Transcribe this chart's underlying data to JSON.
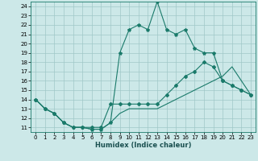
{
  "xlabel": "Humidex (Indice chaleur)",
  "bg_color": "#cce8e8",
  "grid_color": "#a0c8c8",
  "line_color": "#1a7a6a",
  "xlim": [
    -0.5,
    23.5
  ],
  "ylim": [
    10.5,
    24.5
  ],
  "yticks": [
    11,
    12,
    13,
    14,
    15,
    16,
    17,
    18,
    19,
    20,
    21,
    22,
    23,
    24
  ],
  "xticks": [
    0,
    1,
    2,
    3,
    4,
    5,
    6,
    7,
    8,
    9,
    10,
    11,
    12,
    13,
    14,
    15,
    16,
    17,
    18,
    19,
    20,
    21,
    22,
    23
  ],
  "line1_x": [
    0,
    1,
    2,
    3,
    4,
    5,
    6,
    7,
    8,
    9,
    10,
    11,
    12,
    13,
    14,
    15,
    16,
    17,
    18,
    19,
    20,
    21,
    22,
    23
  ],
  "line1_y": [
    14,
    13,
    12.5,
    11.5,
    11,
    11,
    10.8,
    10.8,
    11.5,
    19.0,
    21.5,
    22,
    21.5,
    24.5,
    21.5,
    21,
    21.5,
    19.5,
    19.0,
    19.0,
    16.0,
    15.5,
    15.0,
    14.5
  ],
  "line2_x": [
    0,
    1,
    2,
    3,
    4,
    5,
    6,
    7,
    8,
    9,
    10,
    11,
    12,
    13,
    14,
    15,
    16,
    17,
    18,
    19,
    20,
    21,
    22,
    23
  ],
  "line2_y": [
    14,
    13,
    12.5,
    11.5,
    11,
    11,
    11,
    11,
    13.5,
    13.5,
    13.5,
    13.5,
    13.5,
    13.5,
    14.5,
    15.5,
    16.5,
    17.0,
    18.0,
    17.5,
    16.0,
    15.5,
    15.0,
    14.5
  ],
  "line3_x": [
    0,
    1,
    2,
    3,
    4,
    5,
    6,
    7,
    8,
    9,
    10,
    11,
    12,
    13,
    14,
    15,
    16,
    17,
    18,
    19,
    20,
    21,
    22,
    23
  ],
  "line3_y": [
    14,
    13,
    12.5,
    11.5,
    11,
    11,
    10.8,
    10.8,
    11.5,
    12.5,
    13.0,
    13.0,
    13.0,
    13.0,
    13.5,
    14.0,
    14.5,
    15.0,
    15.5,
    16.0,
    16.5,
    17.5,
    16.0,
    14.5
  ]
}
